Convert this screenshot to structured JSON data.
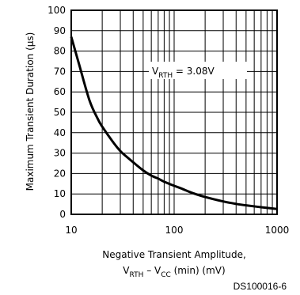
{
  "chart_data": {
    "type": "line",
    "xscale": "log",
    "xlim": [
      10,
      1000
    ],
    "ylim": [
      0,
      100
    ],
    "x_ticks": [
      10,
      100,
      1000
    ],
    "y_ticks": [
      0,
      10,
      20,
      30,
      40,
      50,
      60,
      70,
      80,
      90,
      100
    ],
    "ylabel": "Maximum Transient Duration (μs)",
    "xlabel_line1": "Negative Transient Amplitude,",
    "xlabel_line2": {
      "v": "V",
      "rth_sub": "RTH",
      "minus": " – V",
      "cc_sub": "CC",
      "rest": " (min) (mV)"
    },
    "annotation": {
      "v": "V",
      "sub": "RTH",
      "rest": " = 3.08V"
    },
    "grid": true,
    "series": [
      {
        "x": [
          10,
          12,
          15,
          18,
          20,
          25,
          30,
          35,
          40,
          50,
          60,
          70,
          80,
          100,
          120,
          150,
          200,
          300,
          400,
          500,
          700,
          1000
        ],
        "y": [
          87,
          73,
          56,
          47,
          43,
          36,
          31,
          28,
          25.5,
          21.5,
          19,
          17.5,
          16,
          14,
          12.5,
          10.5,
          8.5,
          6.3,
          5.1,
          4.4,
          3.5,
          2.6
        ]
      }
    ]
  },
  "figure_code": "DS100016-6"
}
